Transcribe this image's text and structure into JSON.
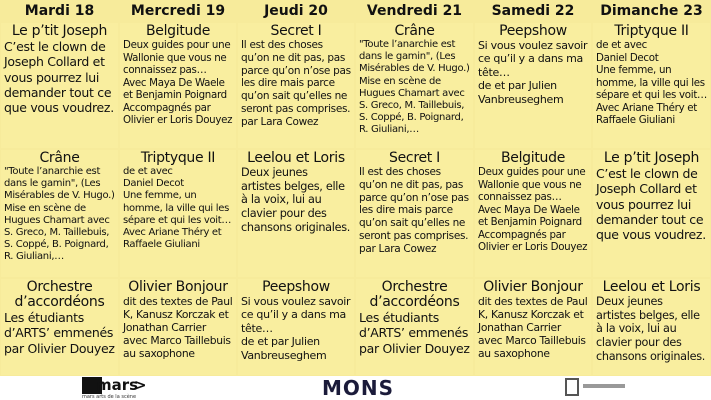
{
  "header": {
    "days": [
      "Mardi 18",
      "Mercredi 19",
      "Jeudi 20",
      "Vendredi 21",
      "Samedi 22",
      "Dimanche  23"
    ]
  },
  "table": {
    "rows": [
      [
        {
          "title": [
            "Le p’tit Joseph"
          ],
          "lines": [
            "C’est le clown de",
            "Joseph Collard et",
            "vous pourrez lui",
            "demander tout ce",
            "que vous voudrez."
          ]
        },
        {
          "title": [
            "Belgitude"
          ],
          "lines": [
            "Deux guides pour une",
            "Wallonie que vous ne",
            "connaissez pas…",
            "Avec Maya De Waele",
            "et Benjamin Poignard",
            "Accompagnés par",
            "Olivier er Loris Douyez"
          ]
        },
        {
          "title": [
            "Secret I"
          ],
          "lines": [
            "Il est des choses",
            "qu’on ne dit pas, pas",
            "parce qu’on n’ose pas",
            "les dire mais parce",
            "qu’on sait qu’elles ne",
            "seront pas comprises.",
            "par Lara Cowez"
          ]
        },
        {
          "title": [
            "Crâne"
          ],
          "lines": [
            "\"Toute l’anarchie est",
            "dans le gamin\", (Les",
            "Misérables de V. Hugo.)",
            "Mise en scène de",
            "Hugues Chamart avec",
            "S. Greco, M. Taillebuis,",
            "S. Coppé, B. Poignard,",
            "R. Giuliani,…"
          ]
        },
        {
          "title": [
            "Peepshow"
          ],
          "lines": [
            "Si vous voulez savoir",
            "ce qu’il y a dans ma",
            "tête…",
            "de et par Julien",
            "Vanbreuseghem"
          ]
        },
        {
          "title": [
            "Triptyque II"
          ],
          "lines": [
            "de et avec",
            "Daniel Decot",
            "Une femme, un",
            "homme, la ville qui les",
            "sépare et qui les voit…",
            "Avec Ariane Théry et",
            "Raffaele Giuliani"
          ]
        }
      ],
      [
        {
          "title": [
            "Crâne"
          ],
          "lines": [
            "\"Toute l’anarchie est",
            "dans le gamin\", (Les",
            "Misérables de V. Hugo.)",
            "Mise en scène de",
            "Hugues Chamart avec",
            "S. Greco, M. Taillebuis,",
            "S. Coppé, B. Poignard,",
            "R. Giuliani,…"
          ]
        },
        {
          "title": [
            "Triptyque II"
          ],
          "lines": [
            "de et avec",
            "Daniel Decot",
            "Une femme, un",
            "homme, la ville qui les",
            "sépare et qui les voit…",
            "Avec Ariane Théry et",
            "Raffaele Giuliani"
          ]
        },
        {
          "title": [
            "Leelou et Loris"
          ],
          "lines": [
            "Deux jeunes",
            "artistes belges, elle",
            "à la voix, lui au",
            "clavier pour des",
            "chansons originales."
          ]
        },
        {
          "title": [
            "Secret I"
          ],
          "lines": [
            "Il est des choses",
            "qu’on ne dit pas, pas",
            "parce qu’on n’ose pas",
            "les dire mais parce",
            "qu’on sait qu’elles ne",
            "seront pas comprises.",
            "par Lara Cowez"
          ]
        },
        {
          "title": [
            "Belgitude"
          ],
          "lines": [
            "Deux guides pour une",
            "Wallonie que vous ne",
            "connaissez pas…",
            "Avec Maya De Waele",
            "et Benjamin Poignard",
            "Accompagnés par",
            "Olivier er Loris Douyez"
          ]
        },
        {
          "title": [
            "Le p’tit Joseph"
          ],
          "lines": [
            "C’est le clown de",
            "Joseph Collard et",
            "vous pourrez lui",
            "demander tout ce",
            "que vous voudrez."
          ]
        }
      ],
      [
        {
          "title": [
            "Orchestre",
            "d’accordéons"
          ],
          "lines": [
            "Les étudiants",
            "d’ARTS’ emmenés",
            "par Olivier Douyez"
          ]
        },
        {
          "title": [
            "Olivier Bonjour"
          ],
          "lines": [
            "dit des textes de Paul",
            "K, Kanusz Korczak et",
            "Jonathan Carrier",
            "avec Marco Taillebuis",
            "au saxophone"
          ]
        },
        {
          "title": [
            "Peepshow"
          ],
          "lines": [
            "Si vous voulez savoir",
            "ce qu’il y a dans ma",
            "tête…",
            "de et par Julien",
            "Vanbreuseghem"
          ]
        },
        {
          "title": [
            "Orchestre",
            "d’accordéons"
          ],
          "lines": [
            "Les étudiants",
            "d’ARTS’ emmenés",
            "par Olivier Douyez"
          ]
        },
        {
          "title": [
            "Olivier Bonjour"
          ],
          "lines": [
            "dit des textes de Paul",
            "K, Kanusz Korczak et",
            "Jonathan Carrier",
            "avec Marco Taillebuis",
            "au saxophone"
          ]
        },
        {
          "title": [
            "Leelou et Loris"
          ],
          "lines": [
            "Deux jeunes",
            "artistes belges, elle",
            "à la voix, lui au",
            "clavier pour des",
            "chansons originales."
          ]
        }
      ]
    ]
  },
  "footer": {
    "mars": "mars",
    "mars_sub": "mars arts de la scène",
    "mons": "MONS"
  }
}
